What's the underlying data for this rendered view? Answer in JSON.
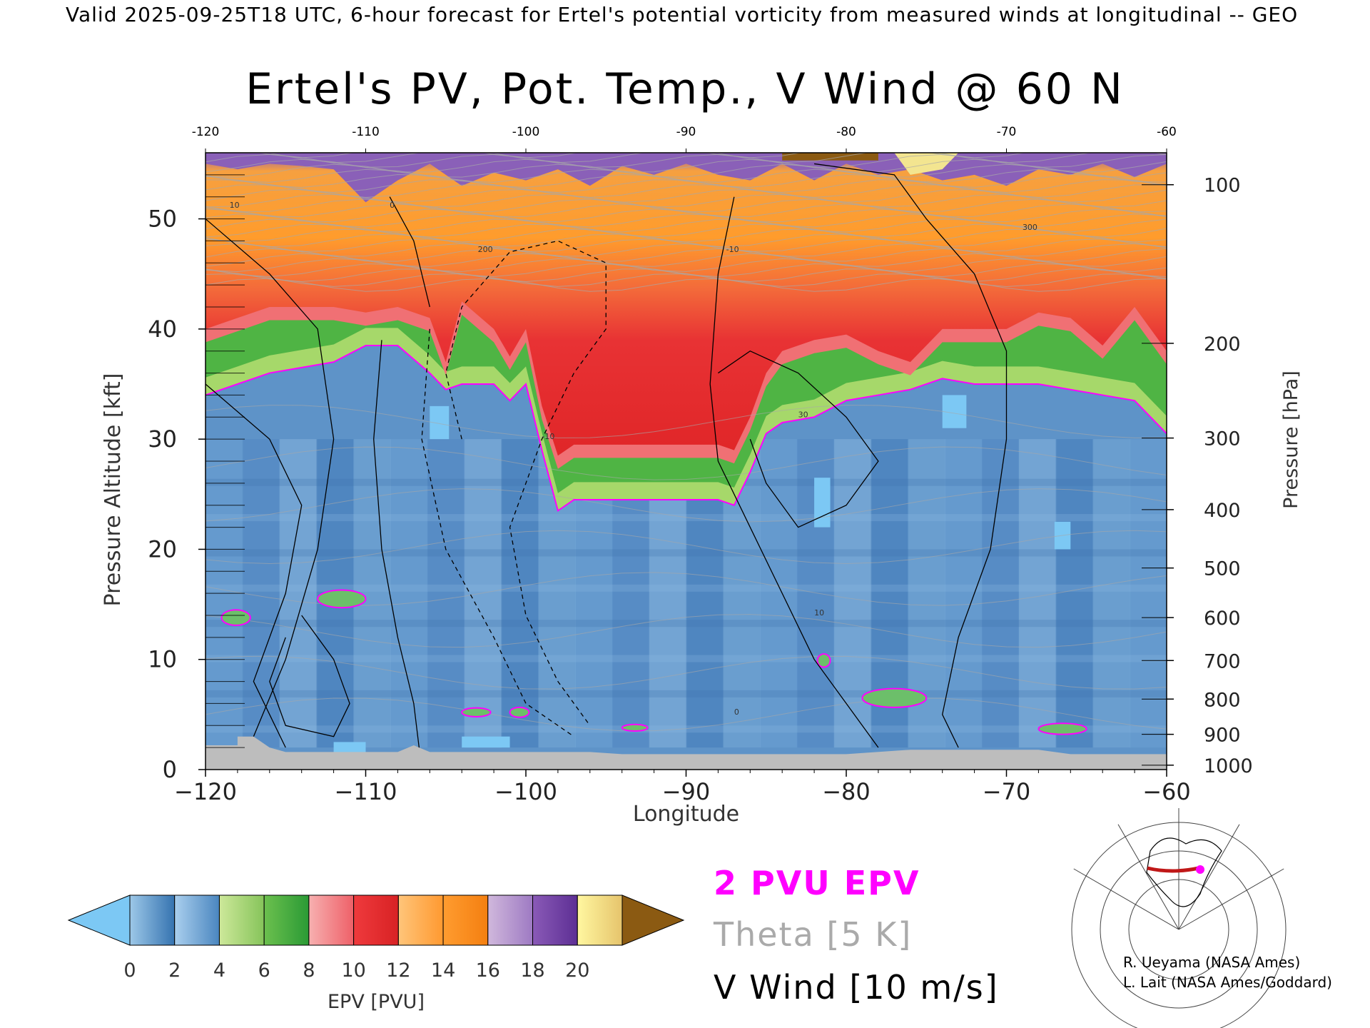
{
  "header": "Valid 2025-09-25T18 UTC, 6-hour forecast for Ertel's potential vorticity from measured winds at longitudinal -- GEO",
  "title": "Ertel's PV, Pot. Temp., V Wind @ 60 N",
  "chart_data": {
    "type": "heatmap",
    "title": "Ertel's PV, Pot. Temp., V Wind @ 60 N",
    "xlabel": "Longitude",
    "ylabel_left": "Pressure Altitude [kft]",
    "ylabel_right": "Pressure [hPa]",
    "xlim": [
      -120,
      -60
    ],
    "ylim": [
      0,
      56
    ],
    "x_ticks": [
      -120,
      -110,
      -100,
      -90,
      -80,
      -70,
      -60
    ],
    "x_tick_labels": [
      "−120",
      "−110",
      "−100",
      "−90",
      "−80",
      "−70",
      "−60"
    ],
    "top_x_tick_labels": [
      "-120",
      "-110",
      "-100",
      "-90",
      "-80",
      "-70",
      "-60"
    ],
    "y_ticks": [
      0,
      10,
      20,
      30,
      40,
      50
    ],
    "y_tick_labels": [
      "0",
      "10",
      "20",
      "30",
      "40",
      "50"
    ],
    "pressure_ticks": [
      {
        "hpa": 100,
        "kft": 53.1,
        "label": "100"
      },
      {
        "hpa": 200,
        "kft": 38.7,
        "label": "200"
      },
      {
        "hpa": 300,
        "kft": 30.1,
        "label": "300"
      },
      {
        "hpa": 400,
        "kft": 23.6,
        "label": "400"
      },
      {
        "hpa": 500,
        "kft": 18.3,
        "label": "500"
      },
      {
        "hpa": 600,
        "kft": 13.8,
        "label": "600"
      },
      {
        "hpa": 700,
        "kft": 9.9,
        "label": "700"
      },
      {
        "hpa": 800,
        "kft": 6.4,
        "label": "800"
      },
      {
        "hpa": 900,
        "kft": 3.2,
        "label": "900"
      },
      {
        "hpa": 1000,
        "kft": 0.4,
        "label": "1000"
      }
    ],
    "pv_2pvu_surface": {
      "lon": [
        -120,
        -118,
        -116,
        -114,
        -112,
        -110,
        -108,
        -106,
        -105,
        -104,
        -102,
        -101,
        -100,
        -99,
        -98,
        -97,
        -96,
        -94,
        -92,
        -90,
        -88,
        -87,
        -86,
        -85,
        -84,
        -82,
        -80,
        -78,
        -76,
        -74,
        -72,
        -70,
        -68,
        -66,
        -64,
        -62,
        -60
      ],
      "kft": [
        34,
        35,
        36,
        36.5,
        37,
        38.5,
        38.5,
        36,
        34.5,
        35,
        35,
        33.5,
        35,
        29,
        23.5,
        24.5,
        24.5,
        24.5,
        24.5,
        24.5,
        24.5,
        24,
        27,
        30.5,
        31.5,
        32,
        33.5,
        34,
        34.5,
        35.5,
        35,
        35,
        35,
        34.5,
        34,
        33.5,
        30.5
      ]
    },
    "tropopause_top_kft": {
      "lon": [
        -120,
        -118,
        -116,
        -114,
        -112,
        -110,
        -108,
        -106,
        -105,
        -104,
        -102,
        -101,
        -100,
        -99,
        -98,
        -97,
        -96,
        -94,
        -92,
        -90,
        -88,
        -87,
        -86,
        -85,
        -84,
        -82,
        -80,
        -78,
        -76,
        -74,
        -72,
        -70,
        -68,
        -66,
        -64,
        -62,
        -60
      ],
      "kft": [
        40,
        41,
        42,
        42,
        42,
        41.5,
        42,
        41,
        37,
        42.5,
        40,
        37.5,
        40,
        33,
        28.5,
        29.5,
        29.5,
        29.5,
        29.5,
        29.5,
        29.5,
        29,
        32,
        36,
        38,
        39,
        39.5,
        38,
        37,
        40,
        40,
        40,
        41.5,
        41,
        38.5,
        42,
        38
      ]
    },
    "colorbar": {
      "label": "EPV [PVU]",
      "min": 0,
      "max": 20,
      "step": 2,
      "tick_labels": [
        "0",
        "2",
        "4",
        "6",
        "8",
        "10",
        "12",
        "14",
        "16",
        "18",
        "20"
      ],
      "under_color": "#7cc8f4",
      "over_color": "#8b5a12",
      "bins": [
        [
          "#9dc8e8",
          "#3573b0"
        ],
        [
          "#aacfee",
          "#4a86bf"
        ],
        [
          "#cde89a",
          "#86c45a"
        ],
        [
          "#6cc04e",
          "#2a9a35"
        ],
        [
          "#f7b0b0",
          "#ee6068"
        ],
        [
          "#ef3a3d",
          "#d82224"
        ],
        [
          "#ffc57a",
          "#ff9930"
        ],
        [
          "#ff9c30",
          "#f47f10"
        ],
        [
          "#d0b8dc",
          "#9e7ac3"
        ],
        [
          "#8a5ab7",
          "#5d2f94"
        ],
        [
          "#fff7a0",
          "#e6c46c"
        ]
      ]
    },
    "contour_labels": [
      "10",
      "0",
      "-10",
      "30",
      "-10",
      "10",
      "0",
      "300",
      "200"
    ],
    "terrain_color": "#bdbdbd"
  },
  "legend": {
    "epv_label": "2 PVU EPV",
    "theta_label": "Theta [5 K]",
    "v_wind_label": "V Wind [10 m/s]"
  },
  "credits": {
    "line1": "R. Ueyama (NASA Ames)",
    "line2": "L. Lait (NASA Ames/Goddard)"
  },
  "colors": {
    "epv_contour": "#ff00ff",
    "theta_contour": "#a8a8a8",
    "v_wind_contour": "#000000",
    "map_track": "#c01818",
    "map_marker": "#ff00ff"
  },
  "inset_map": {
    "description_icon": "globe-map-icon"
  }
}
